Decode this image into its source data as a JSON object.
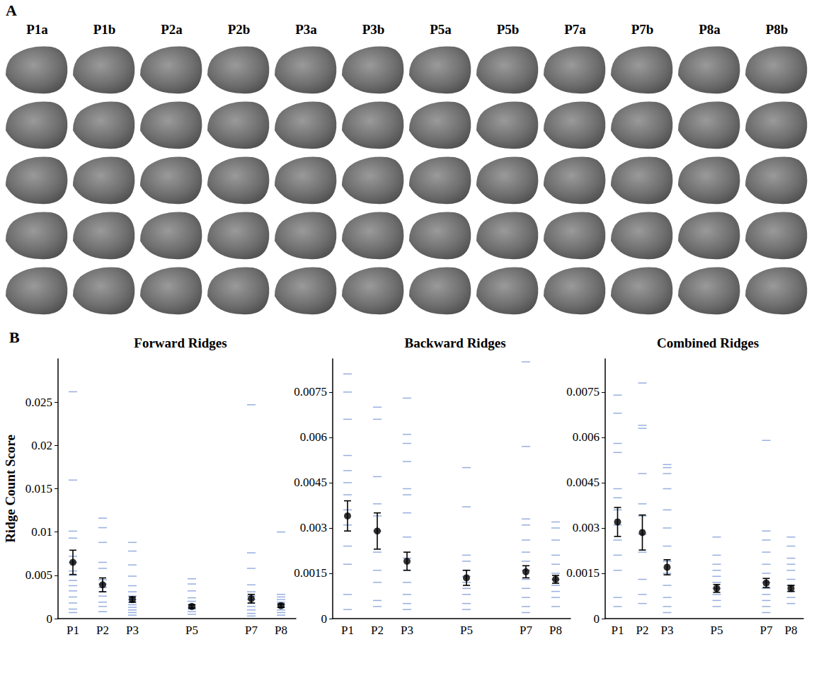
{
  "image_panel": {
    "label": "A",
    "columns": [
      "P1a",
      "P1b",
      "P2a",
      "P2b",
      "P3a",
      "P3b",
      "P5a",
      "P5b",
      "P7a",
      "P7b",
      "P8a",
      "P8b"
    ],
    "rows": 5
  },
  "chart_panel_label": "B",
  "chart_data": [
    {
      "type": "strip",
      "title": "Forward Ridges",
      "y_label": "Ridge Count Score",
      "color": "#7d9bd8",
      "categories": [
        "P1",
        "P2",
        "P3",
        null,
        "P5",
        null,
        "P7",
        "P8"
      ],
      "points": [
        [
          0.0262,
          0.016,
          0.0101,
          0.0093,
          0.0072,
          0.0065,
          0.0055,
          0.005,
          0.0044,
          0.0038,
          0.0032,
          0.0025,
          0.0018,
          0.0011,
          0.0007
        ],
        [
          0.0116,
          0.0105,
          0.0088,
          0.0065,
          0.0058,
          0.0045,
          0.004,
          0.0036,
          0.0031,
          0.0026,
          0.0019,
          0.0014,
          0.0008
        ],
        [
          0.0088,
          0.0078,
          0.0062,
          0.0049,
          0.0038,
          0.0031,
          0.0026,
          0.0022,
          0.0019,
          0.0016,
          0.0013,
          0.001,
          0.0007,
          0.0004
        ],
        null,
        [
          0.0046,
          0.004,
          0.0032,
          0.0024,
          0.002,
          0.0016,
          0.0013,
          0.0011,
          0.0008,
          0.0005
        ],
        null,
        [
          0.0247,
          0.0076,
          0.0058,
          0.0039,
          0.0031,
          0.0026,
          0.0022,
          0.0018,
          0.0014,
          0.001,
          0.0006,
          0.0003
        ],
        [
          0.01,
          0.0028,
          0.0025,
          0.0022,
          0.0019,
          0.0016,
          0.0013,
          0.001,
          0.0007,
          0.0004
        ]
      ],
      "means": [
        0.0065,
        0.0039,
        0.0022,
        null,
        0.0014,
        null,
        0.0023,
        0.0015
      ],
      "sem": [
        0.0014,
        0.0008,
        0.0003,
        null,
        0.0002,
        null,
        0.0005,
        0.0002
      ],
      "ylim": [
        0,
        0.03
      ],
      "yticks": [
        0,
        0.005,
        0.01,
        0.015,
        0.02,
        0.025
      ],
      "grid": false
    },
    {
      "type": "strip",
      "title": "Backward Ridges",
      "color": "#7d9bd8",
      "categories": [
        "P1",
        "P2",
        "P3",
        null,
        "P5",
        null,
        "P7",
        "P8"
      ],
      "points": [
        [
          0.0081,
          0.0075,
          0.0066,
          0.0054,
          0.0049,
          0.0045,
          0.0041,
          0.0036,
          0.0031,
          0.0024,
          0.0018,
          0.0008,
          0.0003
        ],
        [
          0.007,
          0.0066,
          0.0047,
          0.0038,
          0.0034,
          0.0029,
          0.0022,
          0.0016,
          0.0012,
          0.0006,
          0.0004
        ],
        [
          0.0073,
          0.0061,
          0.0058,
          0.0052,
          0.0043,
          0.0041,
          0.0035,
          0.0027,
          0.002,
          0.0016,
          0.0012,
          0.0008,
          0.0005,
          0.0003
        ],
        null,
        [
          0.005,
          0.0037,
          0.0021,
          0.0019,
          0.0016,
          0.0014,
          0.0012,
          0.001,
          0.0008,
          0.0005,
          0.0003
        ],
        null,
        [
          0.0085,
          0.0057,
          0.0033,
          0.0031,
          0.0026,
          0.0022,
          0.0019,
          0.0016,
          0.0013,
          0.001,
          0.0007,
          0.0004,
          0.0002
        ],
        [
          0.0032,
          0.003,
          0.0026,
          0.0021,
          0.0018,
          0.0015,
          0.0013,
          0.0011,
          0.0009,
          0.0007,
          0.0004
        ]
      ],
      "means": [
        0.0034,
        0.0029,
        0.0019,
        null,
        0.00135,
        null,
        0.00155,
        0.0013
      ],
      "sem": [
        0.0005,
        0.0006,
        0.0003,
        null,
        0.00025,
        null,
        0.0002,
        0.00013
      ],
      "ylim": [
        0,
        0.0086
      ],
      "yticks": [
        0,
        0.0015,
        0.003,
        0.0045,
        0.006,
        0.0075
      ],
      "grid": false
    },
    {
      "type": "strip",
      "title": "Combined Ridges",
      "color": "#7d9bd8",
      "categories": [
        "P1",
        "P2",
        "P3",
        null,
        "P5",
        null,
        "P7",
        "P8"
      ],
      "points": [
        [
          0.0074,
          0.0068,
          0.0058,
          0.0055,
          0.0043,
          0.004,
          0.0036,
          0.0031,
          0.0026,
          0.0021,
          0.0016,
          0.0007,
          0.0004
        ],
        [
          0.0078,
          0.0064,
          0.0063,
          0.0048,
          0.0038,
          0.0034,
          0.0028,
          0.0022,
          0.0013,
          0.0008,
          0.0005
        ],
        [
          0.0051,
          0.005,
          0.0048,
          0.0043,
          0.0036,
          0.003,
          0.0024,
          0.0019,
          0.0015,
          0.0011,
          0.0007,
          0.0004,
          0.0002
        ],
        null,
        [
          0.0027,
          0.0021,
          0.0018,
          0.0016,
          0.0014,
          0.0012,
          0.001,
          0.0008,
          0.0006,
          0.0004
        ],
        null,
        [
          0.0059,
          0.0029,
          0.0026,
          0.0022,
          0.0018,
          0.0015,
          0.0012,
          0.001,
          0.0008,
          0.0006,
          0.0004,
          0.0002
        ],
        [
          0.0027,
          0.0024,
          0.002,
          0.0018,
          0.0016,
          0.0013,
          0.0011,
          0.0009,
          0.0007,
          0.0005
        ]
      ],
      "means": [
        0.0032,
        0.00285,
        0.0017,
        null,
        0.001,
        null,
        0.00118,
        0.001
      ],
      "sem": [
        0.00048,
        0.00058,
        0.00025,
        null,
        0.00013,
        null,
        0.00015,
        0.0001
      ],
      "ylim": [
        0,
        0.0086
      ],
      "yticks": [
        0,
        0.0015,
        0.003,
        0.0045,
        0.006,
        0.0075
      ],
      "grid": false
    }
  ]
}
